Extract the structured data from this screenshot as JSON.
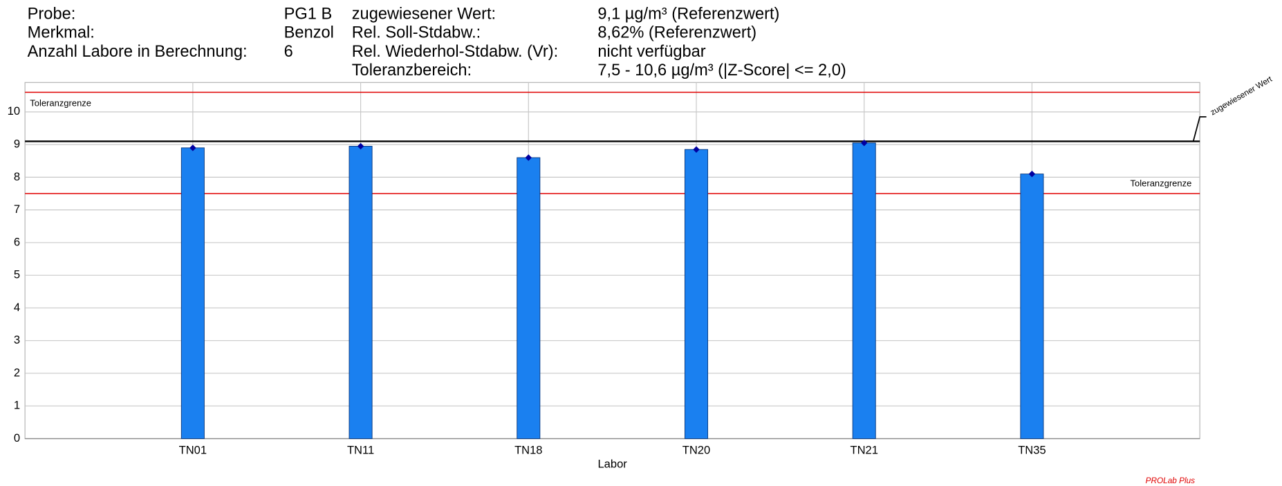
{
  "chart_data": {
    "type": "bar",
    "info_left": [
      [
        "Probe:",
        "PG1 B"
      ],
      [
        "Merkmal:",
        "Benzol"
      ],
      [
        "Anzahl Labore in Berechnung:",
        "6"
      ]
    ],
    "info_right": [
      [
        "zugewiesener Wert:",
        "9,1 µg/m³ (Referenzwert)"
      ],
      [
        "Rel. Soll-Stdabw.:",
        "8,62% (Referenzwert)"
      ],
      [
        "Rel. Wiederhol-Stdabw. (Vr):",
        "nicht verfügbar"
      ],
      [
        "Toleranzbereich:",
        "7,5 - 10,6 µg/m³ (|Z-Score| <= 2,0)"
      ]
    ],
    "x_label": "Labor",
    "categories": [
      "TN01",
      "TN11",
      "TN18",
      "TN20",
      "TN21",
      "TN35"
    ],
    "values": [
      8.9,
      8.95,
      8.6,
      8.85,
      9.05,
      8.1
    ],
    "color": "#1a80f0",
    "marker_color": "#0000a0",
    "reference_lines": [
      {
        "name": "zugewiesener Wert",
        "value": 9.1,
        "color": "#000000"
      },
      {
        "name": "Toleranzgrenze",
        "value": 10.6,
        "color": "#e00000"
      },
      {
        "name": "Toleranzgrenze",
        "value": 7.5,
        "color": "#e00000"
      }
    ],
    "ylim": [
      0,
      10.9
    ],
    "yticks": [
      0,
      1,
      2,
      3,
      4,
      5,
      6,
      7,
      8,
      9,
      10
    ],
    "grid": true,
    "footer": "PROLab Plus"
  }
}
